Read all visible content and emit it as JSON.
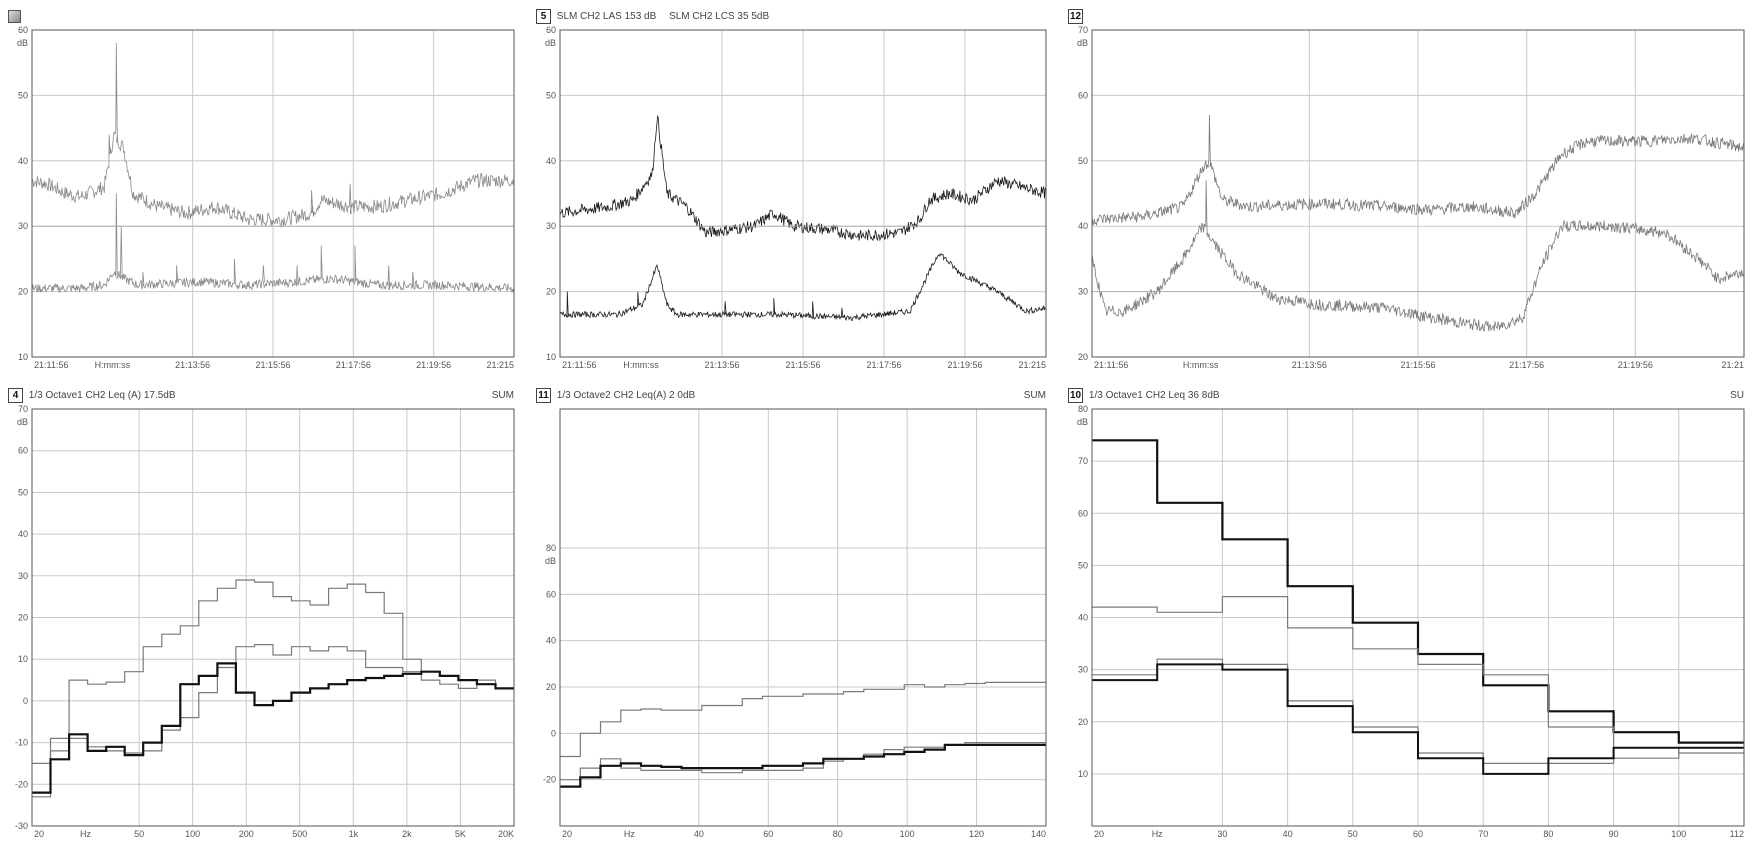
{
  "panels": [
    {
      "id": "p1",
      "number": "",
      "legend": [],
      "x_ticks": [
        "21:11:56",
        "H:mm:ss",
        "21:13:56",
        "21:15:56",
        "21:17:56",
        "21:19:56",
        "21:215"
      ],
      "y_unit": "dB"
    },
    {
      "id": "p5",
      "number": "5",
      "legend": [
        "SLM CH2 LAS 153 dB",
        "SLM CH2 LCS 35 5dB"
      ],
      "x_ticks": [
        "21:11:56",
        "H:mm:ss",
        "21:13:56",
        "21:15:56",
        "21:17:56",
        "21:19:56",
        "21:215"
      ],
      "y_unit": "dB"
    },
    {
      "id": "p12",
      "number": "12",
      "legend": [],
      "x_ticks": [
        "21:11:56",
        "H:mm:ss",
        "21:13:56",
        "21:15:56",
        "21:17:56",
        "21:19:56",
        "21:21"
      ],
      "y_unit": "dB"
    },
    {
      "id": "p4",
      "number": "4",
      "legend": [
        "1/3 Octave1 CH2 Leq (A) 17.5dB"
      ],
      "sum": "SUM",
      "x_ticks": [
        "20",
        "Hz",
        "50",
        "100",
        "200",
        "500",
        "1k",
        "2k",
        "5K",
        "20K"
      ],
      "y_unit": "dB"
    },
    {
      "id": "p11",
      "number": "11",
      "legend": [
        "1/3 Octave2 CH2 Leq(A) 2 0dB"
      ],
      "sum": "SUM",
      "x_ticks": [
        "20",
        "Hz",
        "40",
        "60",
        "80",
        "100",
        "120",
        "140"
      ],
      "y_unit": "dB"
    },
    {
      "id": "p10",
      "number": "10",
      "legend": [
        "1/3 Octave1 CH2 Leq 36 8dB"
      ],
      "sum": "SU",
      "x_ticks": [
        "20",
        "Hz",
        "30",
        "40",
        "50",
        "60",
        "70",
        "80",
        "90",
        "100",
        "112"
      ],
      "y_unit": "dB"
    }
  ],
  "chart_data": [
    {
      "panel": "p1",
      "type": "line",
      "ylim": [
        10,
        60
      ],
      "yticks": [
        60,
        50,
        40,
        30,
        20,
        10
      ],
      "series": [
        {
          "kind": "noisy",
          "color": "#8a8a8a",
          "segments": [
            [
              0.0,
              37
            ],
            [
              0.03,
              36.5
            ],
            [
              0.07,
              35
            ],
            [
              0.1,
              34.5
            ],
            [
              0.15,
              36
            ],
            [
              0.17,
              44
            ],
            [
              0.19,
              42
            ],
            [
              0.21,
              35
            ],
            [
              0.26,
              33
            ],
            [
              0.32,
              32
            ],
            [
              0.38,
              33
            ],
            [
              0.45,
              31
            ],
            [
              0.52,
              31
            ],
            [
              0.58,
              32
            ],
            [
              0.6,
              34
            ],
            [
              0.66,
              33
            ],
            [
              0.72,
              33
            ],
            [
              0.78,
              34
            ],
            [
              0.85,
              35
            ],
            [
              0.92,
              37
            ],
            [
              1.0,
              37
            ]
          ],
          "noise": 1.1,
          "spikes": [
            [
              0.175,
              58
            ],
            [
              0.16,
              44
            ],
            [
              0.58,
              35.5
            ],
            [
              0.66,
              36.5
            ]
          ]
        },
        {
          "kind": "noisy",
          "color": "#8a8a8a",
          "segments": [
            [
              0.0,
              20.5
            ],
            [
              0.1,
              20.5
            ],
            [
              0.15,
              21
            ],
            [
              0.17,
              23
            ],
            [
              0.19,
              22
            ],
            [
              0.22,
              21
            ],
            [
              0.35,
              21.5
            ],
            [
              0.45,
              21
            ],
            [
              0.55,
              21.5
            ],
            [
              0.62,
              22
            ],
            [
              0.72,
              21
            ],
            [
              0.85,
              21
            ],
            [
              1.0,
              20.5
            ]
          ],
          "noise": 0.7,
          "spikes": [
            [
              0.175,
              35
            ],
            [
              0.185,
              30
            ],
            [
              0.23,
              23
            ],
            [
              0.3,
              24
            ],
            [
              0.42,
              25
            ],
            [
              0.48,
              24
            ],
            [
              0.55,
              24
            ],
            [
              0.6,
              27
            ],
            [
              0.67,
              27
            ],
            [
              0.74,
              24
            ],
            [
              0.79,
              23
            ]
          ]
        },
        {
          "kind": "flat",
          "color": "#aaaaaa",
          "points": [
            [
              0,
              30
            ],
            [
              1,
              30
            ]
          ]
        }
      ]
    },
    {
      "panel": "p5",
      "type": "line",
      "ylim": [
        10,
        60
      ],
      "yticks": [
        60,
        50,
        40,
        30,
        20,
        10
      ],
      "series": [
        {
          "kind": "noisy",
          "color": "#1c1c1c",
          "segments": [
            [
              0.0,
              32
            ],
            [
              0.1,
              33
            ],
            [
              0.15,
              34
            ],
            [
              0.19,
              38
            ],
            [
              0.2,
              47
            ],
            [
              0.22,
              35
            ],
            [
              0.26,
              33
            ],
            [
              0.3,
              29
            ],
            [
              0.4,
              30
            ],
            [
              0.44,
              32
            ],
            [
              0.48,
              30
            ],
            [
              0.55,
              29.5
            ],
            [
              0.62,
              28.5
            ],
            [
              0.7,
              29
            ],
            [
              0.74,
              31
            ],
            [
              0.76,
              34
            ],
            [
              0.8,
              35
            ],
            [
              0.85,
              34
            ],
            [
              0.9,
              37
            ],
            [
              0.95,
              36
            ],
            [
              1.0,
              35
            ]
          ],
          "noise": 0.9,
          "spikes": []
        },
        {
          "kind": "noisy",
          "color": "#1c1c1c",
          "segments": [
            [
              0.0,
              16.5
            ],
            [
              0.12,
              16.5
            ],
            [
              0.17,
              18
            ],
            [
              0.2,
              24
            ],
            [
              0.22,
              18
            ],
            [
              0.24,
              16.5
            ],
            [
              0.45,
              16.5
            ],
            [
              0.6,
              16
            ],
            [
              0.72,
              17
            ],
            [
              0.74,
              20
            ],
            [
              0.78,
              26
            ],
            [
              0.82,
              23
            ],
            [
              0.9,
              20
            ],
            [
              0.96,
              17
            ],
            [
              1.0,
              17.5
            ]
          ],
          "noise": 0.45,
          "spikes": [
            [
              0.015,
              20
            ],
            [
              0.16,
              20
            ],
            [
              0.34,
              18.5
            ],
            [
              0.44,
              19
            ],
            [
              0.52,
              18.5
            ],
            [
              0.58,
              17.5
            ]
          ]
        },
        {
          "kind": "flat",
          "color": "#aaaaaa",
          "points": [
            [
              0,
              30
            ],
            [
              1,
              30
            ]
          ]
        }
      ]
    },
    {
      "panel": "p12",
      "type": "line",
      "ylim": [
        20,
        70
      ],
      "yticks": [
        70,
        60,
        50,
        40,
        30,
        20
      ],
      "series": [
        {
          "kind": "noisy",
          "color": "#7a7a7a",
          "segments": [
            [
              0.0,
              41
            ],
            [
              0.08,
              41.5
            ],
            [
              0.14,
              43
            ],
            [
              0.17,
              49
            ],
            [
              0.18,
              50
            ],
            [
              0.2,
              44
            ],
            [
              0.24,
              43
            ],
            [
              0.35,
              43.5
            ],
            [
              0.45,
              43
            ],
            [
              0.52,
              42.5
            ],
            [
              0.58,
              43
            ],
            [
              0.65,
              42
            ],
            [
              0.68,
              45
            ],
            [
              0.72,
              51
            ],
            [
              0.76,
              53
            ],
            [
              0.85,
              53
            ],
            [
              0.92,
              53.5
            ],
            [
              1.0,
              52
            ]
          ],
          "noise": 0.9,
          "spikes": [
            [
              0.18,
              57
            ]
          ]
        },
        {
          "kind": "noisy",
          "color": "#7a7a7a",
          "segments": [
            [
              0.0,
              35
            ],
            [
              0.02,
              27
            ],
            [
              0.05,
              27
            ],
            [
              0.1,
              30
            ],
            [
              0.14,
              35
            ],
            [
              0.17,
              40
            ],
            [
              0.19,
              37
            ],
            [
              0.22,
              33
            ],
            [
              0.28,
              29
            ],
            [
              0.35,
              28
            ],
            [
              0.45,
              27.5
            ],
            [
              0.52,
              26
            ],
            [
              0.58,
              25
            ],
            [
              0.62,
              24.5
            ],
            [
              0.66,
              26
            ],
            [
              0.69,
              34
            ],
            [
              0.72,
              40
            ],
            [
              0.8,
              40
            ],
            [
              0.88,
              39
            ],
            [
              0.93,
              35
            ],
            [
              0.96,
              32
            ],
            [
              1.0,
              33
            ]
          ],
          "noise": 0.9,
          "spikes": [
            [
              0.175,
              47
            ]
          ]
        },
        {
          "kind": "flat",
          "color": "#aaaaaa",
          "points": [
            [
              0,
              30
            ],
            [
              1,
              30
            ]
          ]
        }
      ]
    },
    {
      "panel": "p4",
      "type": "line",
      "ylim": [
        -30,
        70
      ],
      "yticks": [
        70,
        60,
        50,
        40,
        30,
        20,
        10,
        0,
        -10,
        -20,
        -30
      ],
      "series": [
        {
          "kind": "step",
          "color": "#7a7a7a",
          "width": 1.2,
          "values": [
            -15,
            -9,
            5,
            4,
            4.5,
            7,
            13,
            16,
            18,
            24,
            27,
            29,
            28.5,
            25,
            24,
            23,
            27,
            28,
            26,
            21,
            10,
            7,
            6,
            5,
            5,
            3
          ]
        },
        {
          "kind": "step",
          "color": "#7a7a7a",
          "width": 1.2,
          "values": [
            -23,
            -12,
            -9,
            -11,
            -12,
            -12.5,
            -12,
            -7,
            -4,
            2,
            8,
            13,
            13.5,
            11,
            13,
            12,
            13,
            12,
            8,
            8,
            7,
            5,
            4,
            3,
            4,
            3
          ]
        },
        {
          "kind": "step",
          "color": "#111111",
          "width": 2.2,
          "values": [
            -22,
            -14,
            -8,
            -12,
            -11,
            -13,
            -10,
            -6,
            4,
            6,
            9,
            2,
            -1,
            0,
            2,
            3,
            4,
            5,
            5.5,
            6,
            6.5,
            7,
            6,
            5,
            4,
            3
          ]
        }
      ]
    },
    {
      "panel": "p11",
      "type": "line",
      "ylim": [
        -40,
        140
      ],
      "yticks": [
        80,
        60,
        40,
        20,
        0,
        -20
      ],
      "series": [
        {
          "kind": "step",
          "color": "#7a7a7a",
          "width": 1.2,
          "values": [
            -10,
            0,
            5,
            10,
            10.5,
            10,
            10,
            12,
            12,
            15,
            16,
            16,
            17,
            17,
            18,
            19,
            19,
            21,
            20,
            21,
            21.5,
            22,
            22,
            22
          ]
        },
        {
          "kind": "step",
          "color": "#7a7a7a",
          "width": 1.2,
          "values": [
            -20,
            -15,
            -11,
            -15,
            -16,
            -16,
            -16,
            -17,
            -17,
            -16,
            -16,
            -16,
            -15,
            -12,
            -11,
            -9,
            -7,
            -6,
            -6,
            -5,
            -4,
            -4,
            -4,
            -4
          ]
        },
        {
          "kind": "step",
          "color": "#111111",
          "width": 2.2,
          "values": [
            -23,
            -19,
            -14,
            -13,
            -14,
            -14.5,
            -15,
            -15,
            -15,
            -15,
            -14,
            -14,
            -13,
            -11,
            -11,
            -10,
            -9,
            -8,
            -7,
            -5,
            -5,
            -5,
            -5,
            -5
          ]
        }
      ]
    },
    {
      "panel": "p10",
      "type": "line",
      "ylim": [
        0,
        80
      ],
      "yticks": [
        80,
        70,
        60,
        50,
        40,
        30,
        20,
        10
      ],
      "series": [
        {
          "kind": "step",
          "color": "#111111",
          "width": 2.2,
          "values": [
            74,
            62,
            55,
            46,
            39,
            33,
            27,
            22,
            18,
            16
          ]
        },
        {
          "kind": "step",
          "color": "#7a7a7a",
          "width": 1.2,
          "values": [
            42,
            41,
            44,
            38,
            34,
            31,
            29,
            19,
            15,
            14
          ]
        },
        {
          "kind": "step",
          "color": "#7a7a7a",
          "width": 1.2,
          "values": [
            29,
            32,
            31,
            24,
            19,
            14,
            12,
            12,
            13,
            15
          ]
        },
        {
          "kind": "step",
          "color": "#111111",
          "width": 2.0,
          "values": [
            28,
            31,
            30,
            23,
            18,
            13,
            10,
            13,
            15,
            15
          ]
        }
      ]
    }
  ]
}
